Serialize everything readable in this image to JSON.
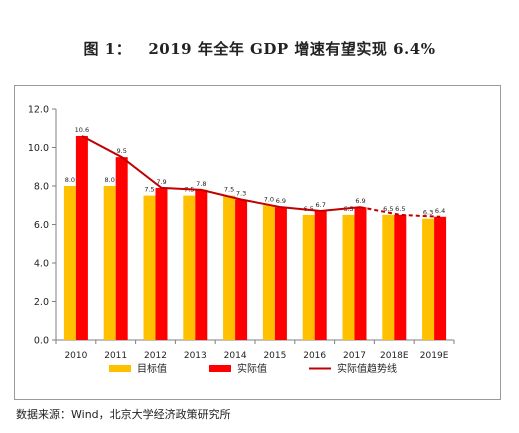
{
  "figure": {
    "title": "图 1：   2019 年全年 GDP 增速有望实现 6.4%",
    "source": "数据来源：Wind，北京大学经济政策研究所"
  },
  "colors": {
    "target_bar": "#ffc000",
    "actual_bar": "#ff0000",
    "trend_line": "#c00000",
    "axis": "#7f7f7f",
    "panel_border": "#9a9a9a"
  },
  "chart_data": {
    "type": "bar",
    "categories": [
      "2010",
      "2011",
      "2012",
      "2013",
      "2014",
      "2015",
      "2016",
      "2017",
      "2018E",
      "2019E"
    ],
    "ylim": [
      0,
      12
    ],
    "yticks": [
      0.0,
      2.0,
      4.0,
      6.0,
      8.0,
      10.0,
      12.0
    ],
    "ytick_labels": [
      "0.0",
      "2.0",
      "4.0",
      "6.0",
      "8.0",
      "10.0",
      "12.0"
    ],
    "grid": false,
    "legend_position": "bottom",
    "series": [
      {
        "name": "目标值",
        "type": "bar",
        "values": [
          8.0,
          8.0,
          7.5,
          7.5,
          7.5,
          7.0,
          6.5,
          6.5,
          6.5,
          6.3
        ],
        "labels": [
          "8.0",
          "8.0",
          "7.5",
          "7.5",
          "7.5",
          "7.0",
          "6.5",
          "6.5",
          "6.5",
          "6.3"
        ]
      },
      {
        "name": "实际值",
        "type": "bar",
        "values": [
          10.6,
          9.5,
          7.9,
          7.8,
          7.3,
          6.9,
          6.7,
          6.9,
          6.5,
          6.4
        ],
        "labels": [
          "10.6",
          "9.5",
          "7.9",
          "7.8",
          "7.3",
          "6.9",
          "6.7",
          "6.9",
          "6.5",
          "6.4"
        ]
      },
      {
        "name": "实际值趋势线",
        "type": "line",
        "values": [
          10.6,
          9.5,
          7.9,
          7.8,
          7.3,
          6.9,
          6.7,
          6.9,
          6.5,
          6.4
        ],
        "dashed_from_category": "2018E"
      }
    ]
  }
}
